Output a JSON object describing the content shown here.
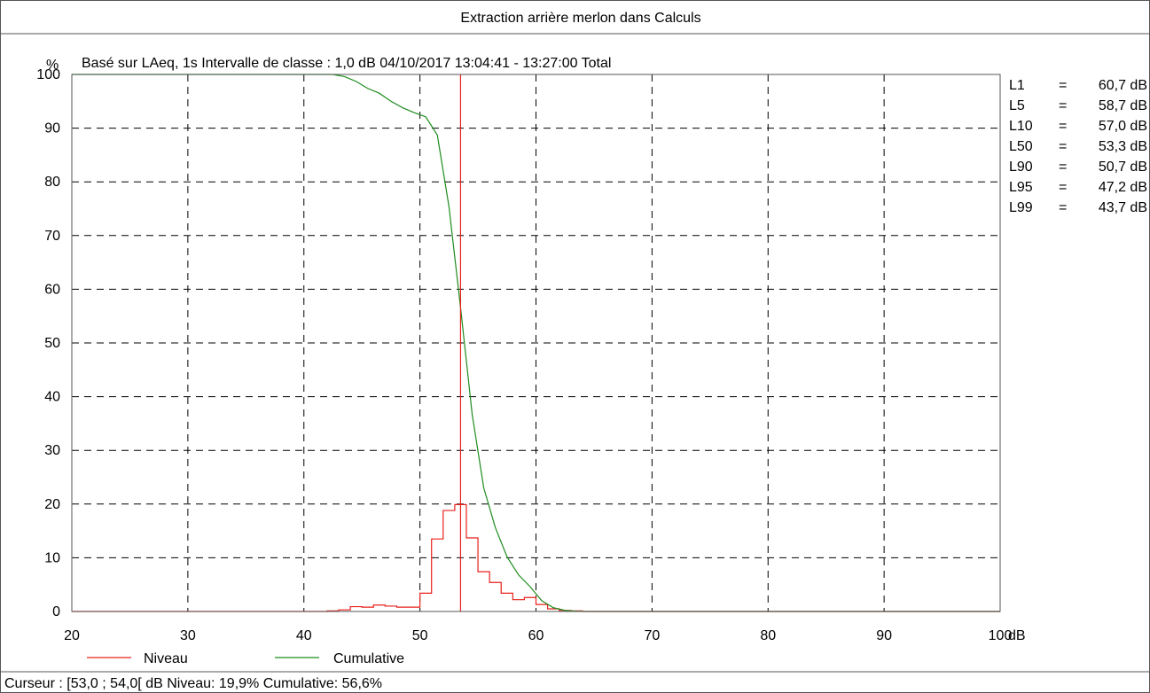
{
  "chart_data": {
    "type": "line",
    "title": "Extraction arrière merlon dans Calculs",
    "subtitle": "Basé sur LAeq, 1s Intervalle de classe : 1,0 dB  04/10/2017 13:04:41 - 13:27:00  Total",
    "ylabel": "%",
    "xlabel": "dB",
    "xlim": [
      20,
      100
    ],
    "ylim": [
      0,
      100
    ],
    "x_ticks": [
      20,
      30,
      40,
      50,
      60,
      70,
      80,
      90,
      100
    ],
    "y_ticks": [
      0,
      10,
      20,
      30,
      40,
      50,
      60,
      70,
      80,
      90,
      100
    ],
    "x_tick_labels": [
      "20",
      "30",
      "40",
      "50",
      "60",
      "70",
      "80",
      "90",
      "100"
    ],
    "y_tick_labels": [
      "0",
      "10",
      "20",
      "30",
      "40",
      "50",
      "60",
      "70",
      "80",
      "90",
      "100"
    ],
    "grid": true,
    "legend_position": "bottom",
    "cursor_x": 53.5,
    "series": [
      {
        "name": "Niveau",
        "color": "#e8211b",
        "style": "step",
        "bin_width": 1,
        "bins_start": [
          20,
          21,
          22,
          23,
          24,
          25,
          26,
          27,
          28,
          29,
          30,
          31,
          32,
          33,
          34,
          35,
          36,
          37,
          38,
          39,
          40,
          41,
          42,
          43,
          44,
          45,
          46,
          47,
          48,
          49,
          50,
          51,
          52,
          53,
          54,
          55,
          56,
          57,
          58,
          59,
          60,
          61,
          62,
          63,
          64,
          65,
          66,
          67,
          68,
          69,
          70,
          71,
          72,
          73,
          74,
          75,
          76,
          77,
          78,
          79,
          80,
          81,
          82,
          83,
          84,
          85,
          86,
          87,
          88,
          89,
          90,
          91,
          92,
          93,
          94,
          95,
          96,
          97,
          98,
          99
        ],
        "values": [
          0,
          0,
          0,
          0,
          0,
          0,
          0,
          0,
          0,
          0,
          0,
          0,
          0,
          0,
          0,
          0,
          0,
          0,
          0,
          0,
          0,
          0,
          0.1,
          0.3,
          0.9,
          0.8,
          1.2,
          1.0,
          0.8,
          0.8,
          3.4,
          13.5,
          18.8,
          19.9,
          13.7,
          7.4,
          5.4,
          3.4,
          2.2,
          2.6,
          1.3,
          0.5,
          0.2,
          0.1,
          0,
          0,
          0,
          0,
          0,
          0,
          0,
          0,
          0,
          0,
          0,
          0,
          0,
          0,
          0,
          0,
          0,
          0,
          0,
          0,
          0,
          0,
          0,
          0,
          0,
          0,
          0,
          0,
          0,
          0,
          0,
          0,
          0,
          0,
          0,
          0
        ]
      },
      {
        "name": "Cumulative",
        "color": "#1e8c1e",
        "style": "line",
        "x": [
          20,
          42.5,
          43.5,
          44.5,
          45.5,
          46.5,
          47.5,
          48.5,
          49.5,
          50.5,
          51.5,
          52.5,
          53.5,
          54.5,
          55.5,
          56.5,
          57.5,
          58.5,
          59.5,
          60.5,
          61.5,
          62.5,
          63.5,
          64.5,
          100
        ],
        "y": [
          100,
          100,
          99.6,
          98.7,
          97.4,
          96.5,
          95.0,
          93.8,
          92.9,
          92.1,
          88.7,
          75.4,
          56.6,
          36.7,
          23.0,
          15.6,
          10.2,
          6.8,
          4.6,
          2.0,
          0.7,
          0.2,
          0.05,
          0,
          0
        ]
      }
    ],
    "stats": [
      {
        "label": "L1",
        "eq": "=",
        "value": "60,7 dB"
      },
      {
        "label": "L5",
        "eq": "=",
        "value": "58,7 dB"
      },
      {
        "label": "L10",
        "eq": "=",
        "value": "57,0 dB"
      },
      {
        "label": "L50",
        "eq": "=",
        "value": "53,3 dB"
      },
      {
        "label": "L90",
        "eq": "=",
        "value": "50,7 dB"
      },
      {
        "label": "L95",
        "eq": "=",
        "value": "47,2 dB"
      },
      {
        "label": "L99",
        "eq": "=",
        "value": "43,7 dB"
      }
    ],
    "cursor_readout": "Curseur : [53,0 ; 54,0[ dB   Niveau: 19,9%   Cumulative: 56,6%"
  },
  "colors": {
    "frame": "#555555",
    "grid": "#000000",
    "cursor": "#e8211b"
  }
}
